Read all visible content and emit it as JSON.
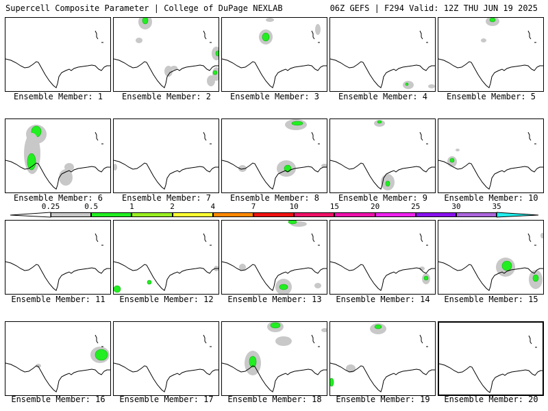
{
  "header": {
    "left": "Supercell Composite Parameter | College of DuPage NEXLAB",
    "right": "06Z GEFS | F294 Valid: 12Z THU JUN 19 2025"
  },
  "panels": [
    {
      "label": "Ensemble Member: 1"
    },
    {
      "label": "Ensemble Member: 2"
    },
    {
      "label": "Ensemble Member: 3"
    },
    {
      "label": "Ensemble Member: 4"
    },
    {
      "label": "Ensemble Member: 5"
    },
    {
      "label": "Ensemble Member: 6"
    },
    {
      "label": "Ensemble Member: 7"
    },
    {
      "label": "Ensemble Member: 8"
    },
    {
      "label": "Ensemble Member: 9"
    },
    {
      "label": "Ensemble Member: 10"
    },
    {
      "label": "Ensemble Member: 11"
    },
    {
      "label": "Ensemble Member: 12"
    },
    {
      "label": "Ensemble Member: 13"
    },
    {
      "label": "Ensemble Member: 14"
    },
    {
      "label": "Ensemble Member: 15"
    },
    {
      "label": "Ensemble Member: 16"
    },
    {
      "label": "Ensemble Member: 17"
    },
    {
      "label": "Ensemble Member: 18"
    },
    {
      "label": "Ensemble Member: 19"
    },
    {
      "label": "Ensemble Member: 20",
      "selected": true
    }
  ],
  "colorbar": {
    "labels": [
      "0.25",
      "0.5",
      "1",
      "2",
      "4",
      "7",
      "10",
      "15",
      "20",
      "25",
      "30",
      "35"
    ],
    "colors": [
      "#c8c8c8",
      "#22ee22",
      "#99ee22",
      "#ffff33",
      "#ff8800",
      "#ee1111",
      "#ee1166",
      "#ee11aa",
      "#ee22ee",
      "#8811ee",
      "#aa66dd",
      "#22eeee"
    ]
  }
}
